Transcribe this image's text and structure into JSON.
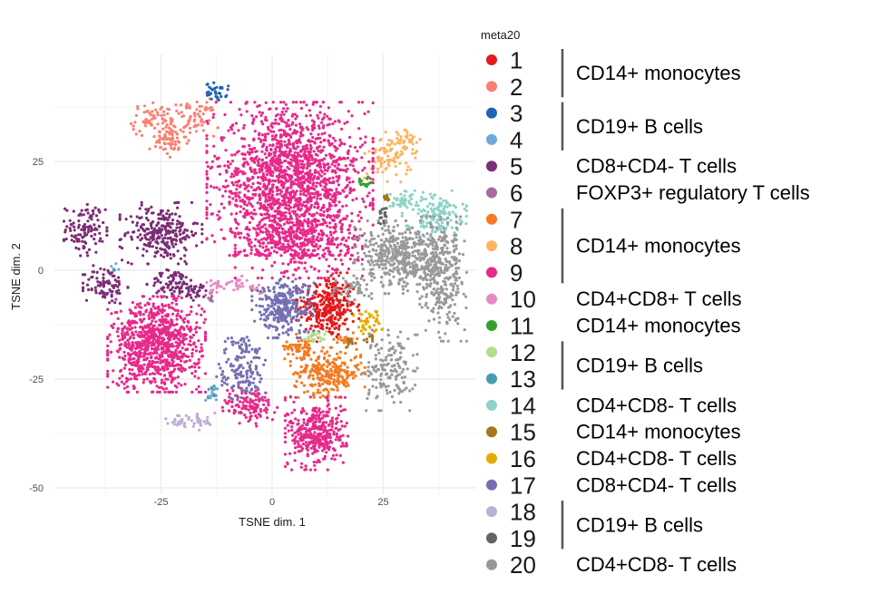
{
  "chart_data": {
    "type": "scatter",
    "xlabel": "TSNE dim. 1",
    "ylabel": "TSNE dim. 2",
    "x_ticks": [
      -25,
      0,
      25
    ],
    "y_ticks": [
      -50,
      -25,
      0,
      25
    ],
    "xlim": [
      -45,
      45
    ],
    "ylim": [
      -50,
      44
    ],
    "grid": true,
    "legend_title": "meta20",
    "legend_position": "right",
    "clusters": [
      {
        "id": "1",
        "color": "#E31A1C",
        "blobs": [
          {
            "x": 12.5,
            "y": -8.5,
            "sx": 3.2,
            "sy": 3.6,
            "n": 320
          }
        ]
      },
      {
        "id": "2",
        "color": "#FB8072",
        "blobs": [
          {
            "x": -26.5,
            "y": 34.5,
            "sx": 2.5,
            "sy": 1.8,
            "n": 70
          },
          {
            "x": -17.5,
            "y": 35,
            "sx": 2.4,
            "sy": 2,
            "n": 70
          },
          {
            "x": -23,
            "y": 29.5,
            "sx": 2.2,
            "sy": 1.6,
            "n": 60
          }
        ]
      },
      {
        "id": "3",
        "color": "#1F63B5",
        "blobs": [
          {
            "x": -12.5,
            "y": 41,
            "sx": 1.2,
            "sy": 1.0,
            "n": 35
          }
        ]
      },
      {
        "id": "4",
        "color": "#6FA8DC",
        "blobs": [
          {
            "x": -35.5,
            "y": 0.5,
            "sx": 0.5,
            "sy": 0.5,
            "n": 4
          },
          {
            "x": -13.5,
            "y": -28,
            "sx": 0.7,
            "sy": 1.0,
            "n": 10
          }
        ]
      },
      {
        "id": "5",
        "color": "#7B2D75",
        "blobs": [
          {
            "x": -42,
            "y": 9.5,
            "sx": 2.2,
            "sy": 2.8,
            "n": 110
          },
          {
            "x": -25,
            "y": 8.5,
            "sx": 4.2,
            "sy": 3.2,
            "n": 260
          },
          {
            "x": -37.5,
            "y": -3.5,
            "sx": 2.3,
            "sy": 2.2,
            "n": 90
          },
          {
            "x": -22,
            "y": -3,
            "sx": 2.8,
            "sy": 1.5,
            "n": 80
          },
          {
            "x": -17,
            "y": -5,
            "sx": 1.3,
            "sy": 1.0,
            "n": 25
          }
        ]
      },
      {
        "id": "6",
        "color": "#A86BA0",
        "blobs": [
          {
            "x": -14,
            "y": -6,
            "sx": 0.7,
            "sy": 0.7,
            "n": 10
          }
        ]
      },
      {
        "id": "7",
        "color": "#F47B20",
        "blobs": [
          {
            "x": 6.5,
            "y": -17.5,
            "sx": 1.8,
            "sy": 1.3,
            "n": 60
          },
          {
            "x": 12.5,
            "y": -23.5,
            "sx": 3.8,
            "sy": 2.6,
            "n": 260
          },
          {
            "x": 16.5,
            "y": -16,
            "sx": 1.2,
            "sy": 1.0,
            "n": 18
          }
        ]
      },
      {
        "id": "8",
        "color": "#FDB462",
        "blobs": [
          {
            "x": 26.5,
            "y": 26,
            "sx": 2.6,
            "sy": 2.6,
            "n": 90
          },
          {
            "x": 30.5,
            "y": 30,
            "sx": 1.4,
            "sy": 1.6,
            "n": 30
          }
        ]
      },
      {
        "id": "9",
        "color": "#E7298A",
        "blobs": [
          {
            "x": 4,
            "y": 21,
            "sx": 8.5,
            "sy": 8,
            "n": 1600
          },
          {
            "x": 6,
            "y": 7,
            "sx": 6.5,
            "sy": 4,
            "n": 450
          },
          {
            "x": -26,
            "y": -17,
            "sx": 5,
            "sy": 5,
            "n": 900
          },
          {
            "x": 10,
            "y": -37.5,
            "sx": 3.2,
            "sy": 3.8,
            "n": 380
          },
          {
            "x": -5,
            "y": -31,
            "sx": 2.8,
            "sy": 2.2,
            "n": 130
          }
        ]
      },
      {
        "id": "10",
        "color": "#E78AC3",
        "blobs": [
          {
            "x": -12.5,
            "y": -3.5,
            "sx": 1.0,
            "sy": 0.8,
            "n": 18
          },
          {
            "x": -7.5,
            "y": -3,
            "sx": 1.2,
            "sy": 0.8,
            "n": 20
          },
          {
            "x": -4,
            "y": -4,
            "sx": 1.0,
            "sy": 0.8,
            "n": 14
          }
        ]
      },
      {
        "id": "11",
        "color": "#33A02C",
        "blobs": [
          {
            "x": 21,
            "y": 20,
            "sx": 0.6,
            "sy": 0.7,
            "n": 14
          }
        ]
      },
      {
        "id": "12",
        "color": "#B2DF8A",
        "blobs": [
          {
            "x": 9.5,
            "y": -15.5,
            "sx": 1.2,
            "sy": 0.8,
            "n": 22
          }
        ]
      },
      {
        "id": "13",
        "color": "#4A9BB0",
        "blobs": [
          {
            "x": -13.5,
            "y": -28,
            "sx": 0.5,
            "sy": 0.8,
            "n": 8
          },
          {
            "x": -35.5,
            "y": 0,
            "sx": 0.3,
            "sy": 0.3,
            "n": 2
          }
        ]
      },
      {
        "id": "14",
        "color": "#8DD3C7",
        "blobs": [
          {
            "x": 36.5,
            "y": 13,
            "sx": 3.3,
            "sy": 2.4,
            "n": 150
          },
          {
            "x": 29.5,
            "y": 16,
            "sx": 1.8,
            "sy": 1.0,
            "n": 40
          }
        ]
      },
      {
        "id": "15",
        "color": "#A6761D",
        "blobs": [
          {
            "x": 26,
            "y": 16.5,
            "sx": 0.6,
            "sy": 0.6,
            "n": 10
          },
          {
            "x": 17.5,
            "y": -16.5,
            "sx": 0.8,
            "sy": 0.5,
            "n": 12
          },
          {
            "x": 22,
            "y": -16,
            "sx": 0.6,
            "sy": 0.5,
            "n": 8
          }
        ]
      },
      {
        "id": "16",
        "color": "#E6AB02",
        "blobs": [
          {
            "x": 21.5,
            "y": -11.5,
            "sx": 1.5,
            "sy": 1.6,
            "n": 45
          }
        ]
      },
      {
        "id": "17",
        "color": "#7570B3",
        "blobs": [
          {
            "x": 2.5,
            "y": -8.5,
            "sx": 3.2,
            "sy": 3.2,
            "n": 300
          },
          {
            "x": -6.5,
            "y": -18,
            "sx": 2.0,
            "sy": 1.4,
            "n": 45
          },
          {
            "x": -7,
            "y": -24.5,
            "sx": 2.5,
            "sy": 2.5,
            "n": 110
          }
        ]
      },
      {
        "id": "18",
        "color": "#BEAED4",
        "blobs": [
          {
            "x": -18,
            "y": -34.5,
            "sx": 2.8,
            "sy": 1.0,
            "n": 45
          }
        ]
      },
      {
        "id": "19",
        "color": "#636363",
        "blobs": [
          {
            "x": 25,
            "y": 12,
            "sx": 0.6,
            "sy": 1.5,
            "n": 18
          }
        ]
      },
      {
        "id": "20",
        "color": "#999999",
        "blobs": [
          {
            "x": 30,
            "y": 3,
            "sx": 5.2,
            "sy": 3.8,
            "n": 500
          },
          {
            "x": 38.5,
            "y": -2,
            "sx": 2.4,
            "sy": 6.5,
            "n": 260
          },
          {
            "x": 26.5,
            "y": -23,
            "sx": 2.8,
            "sy": 4.2,
            "n": 160
          },
          {
            "x": 18,
            "y": -4,
            "sx": 2.0,
            "sy": 1.5,
            "n": 40
          }
        ]
      }
    ]
  },
  "legend_annotations": [
    {
      "text": "CD14+ monocytes",
      "from": "1",
      "to": "2",
      "bracket": true
    },
    {
      "text": "CD19+ B cells",
      "from": "3",
      "to": "4",
      "bracket": true
    },
    {
      "text": "CD8+CD4- T cells",
      "from": "5",
      "to": "5",
      "bracket": false
    },
    {
      "text": "FOXP3+ regulatory T cells",
      "from": "6",
      "to": "6",
      "bracket": false
    },
    {
      "text": "CD14+ monocytes",
      "from": "7",
      "to": "9",
      "bracket": true
    },
    {
      "text": "CD4+CD8+ T cells",
      "from": "10",
      "to": "10",
      "bracket": false
    },
    {
      "text": "CD14+ monocytes",
      "from": "11",
      "to": "11",
      "bracket": false
    },
    {
      "text": "CD19+ B cells",
      "from": "12",
      "to": "13",
      "bracket": true
    },
    {
      "text": "CD4+CD8- T cells",
      "from": "14",
      "to": "14",
      "bracket": false
    },
    {
      "text": "CD14+ monocytes",
      "from": "15",
      "to": "15",
      "bracket": false
    },
    {
      "text": "CD4+CD8- T cells",
      "from": "16",
      "to": "16",
      "bracket": false
    },
    {
      "text": "CD8+CD4- T cells",
      "from": "17",
      "to": "17",
      "bracket": false
    },
    {
      "text": "CD19+ B cells",
      "from": "18",
      "to": "19",
      "bracket": true
    },
    {
      "text": "CD4+CD8- T cells",
      "from": "20",
      "to": "20",
      "bracket": false
    }
  ]
}
